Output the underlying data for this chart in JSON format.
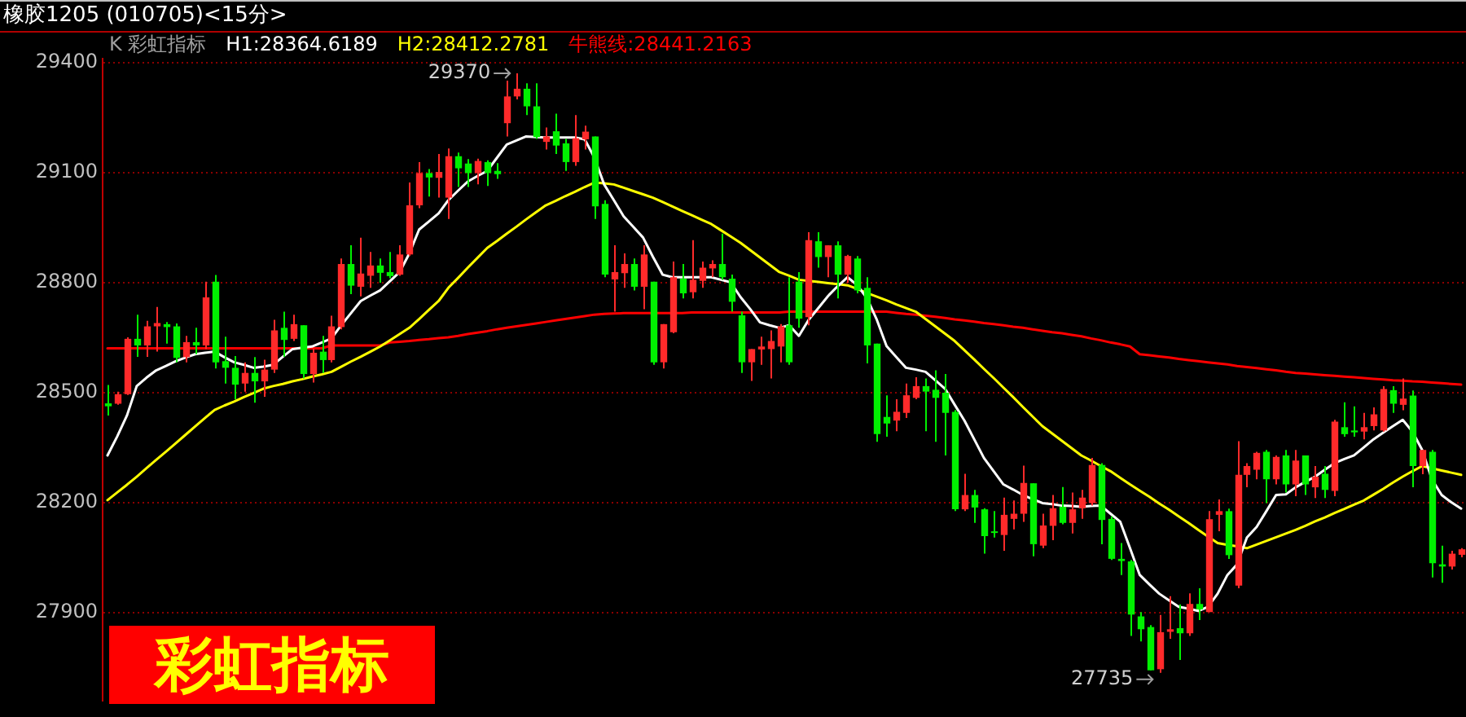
{
  "chart_data": {
    "type": "candlestick",
    "title": "橡胶1205 (010705)<15分>",
    "subtitle": "K 彩虹指标",
    "categories": [
      null,
      null,
      null,
      null,
      null,
      null,
      null,
      null,
      null,
      null,
      null,
      null,
      null,
      null,
      null,
      null,
      null,
      null,
      null,
      null,
      null,
      null,
      null,
      null,
      null,
      null,
      null,
      null,
      null,
      null,
      null,
      null,
      null,
      null,
      null,
      null,
      null,
      null,
      null,
      null,
      null,
      null,
      null,
      null,
      null,
      null,
      null,
      null,
      null,
      null,
      null,
      null,
      null,
      null,
      null,
      null,
      null,
      null,
      null,
      null,
      null,
      null,
      null,
      null,
      null,
      null,
      null,
      null,
      null,
      null,
      null,
      null,
      null,
      null,
      null,
      null,
      null,
      null,
      null,
      null,
      null,
      null,
      null,
      null,
      null,
      null,
      null,
      null,
      null,
      null,
      null,
      null,
      null,
      null,
      null,
      null,
      null,
      null,
      null,
      null,
      null,
      null,
      null,
      null,
      null,
      null,
      null,
      null,
      null,
      null,
      null,
      null,
      null,
      null,
      null,
      null,
      null,
      null,
      null,
      null,
      null,
      null,
      null,
      null,
      null,
      null,
      null,
      null,
      null,
      null,
      null,
      null,
      null,
      null,
      null,
      null,
      null,
      null,
      null,
      null
    ],
    "ohlc": [
      [
        28470,
        28520,
        28437,
        28462
      ],
      [
        28469,
        28502,
        28466,
        28495
      ],
      [
        28495,
        28650,
        28493,
        28646
      ],
      [
        28646,
        28712,
        28597,
        28628
      ],
      [
        28628,
        28695,
        28597,
        28680
      ],
      [
        28680,
        28733,
        28611,
        28689
      ],
      [
        28686,
        28692,
        28633,
        28678
      ],
      [
        28680,
        28688,
        28582,
        28594
      ],
      [
        28596,
        28654,
        28582,
        28637
      ],
      [
        28637,
        28676,
        28604,
        28628
      ],
      [
        28628,
        28802,
        28618,
        28759
      ],
      [
        28802,
        28820,
        28565,
        28582
      ],
      [
        28585,
        28652,
        28524,
        28567
      ],
      [
        28567,
        28599,
        28481,
        28521
      ],
      [
        28524,
        28582,
        28502,
        28553
      ],
      [
        28553,
        28596,
        28472,
        28530
      ],
      [
        28530,
        28589,
        28488,
        28562
      ],
      [
        28562,
        28698,
        28553,
        28669
      ],
      [
        28676,
        28720,
        28597,
        28643
      ],
      [
        28646,
        28712,
        28640,
        28686
      ],
      [
        28683,
        28683,
        28538,
        28550
      ],
      [
        28550,
        28618,
        28527,
        28608
      ],
      [
        28611,
        28654,
        28553,
        28588
      ],
      [
        28588,
        28709,
        28582,
        28680
      ],
      [
        28678,
        28865,
        28672,
        28850
      ],
      [
        28850,
        28901,
        28768,
        28791
      ],
      [
        28788,
        28922,
        28762,
        28824
      ],
      [
        28818,
        28883,
        28785,
        28846
      ],
      [
        28846,
        28865,
        28799,
        28826
      ],
      [
        28828,
        28883,
        28811,
        28817
      ],
      [
        28821,
        28901,
        28818,
        28876
      ],
      [
        28876,
        29072,
        28872,
        29010
      ],
      [
        29010,
        29128,
        29002,
        29098
      ],
      [
        29098,
        29109,
        29034,
        29086
      ],
      [
        29085,
        29150,
        29031,
        29101
      ],
      [
        29031,
        29165,
        28973,
        29144
      ],
      [
        29144,
        29154,
        29060,
        29111
      ],
      [
        29124,
        29136,
        29060,
        29098
      ],
      [
        29098,
        29137,
        29067,
        29131
      ],
      [
        29128,
        29133,
        29063,
        29098
      ],
      [
        29104,
        29125,
        29082,
        29095
      ],
      [
        29234,
        29350,
        29198,
        29307
      ],
      [
        29307,
        29370,
        29299,
        29328
      ],
      [
        29328,
        29343,
        29256,
        29280
      ],
      [
        29280,
        29343,
        29191,
        29196
      ],
      [
        29183,
        29222,
        29162,
        29198
      ],
      [
        29212,
        29260,
        29150,
        29173
      ],
      [
        29179,
        29191,
        29104,
        29128
      ],
      [
        29128,
        29256,
        29118,
        29193
      ],
      [
        29190,
        29227,
        29162,
        29211
      ],
      [
        29198,
        29198,
        28973,
        29007
      ],
      [
        29014,
        29024,
        28814,
        28821
      ],
      [
        28808,
        28901,
        28720,
        28828
      ],
      [
        28825,
        28879,
        28785,
        28850
      ],
      [
        28850,
        28865,
        28778,
        28788
      ],
      [
        28788,
        28901,
        28727,
        28876
      ],
      [
        28802,
        28802,
        28575,
        28582
      ],
      [
        28582,
        28686,
        28565,
        28686
      ],
      [
        28664,
        28857,
        28661,
        28814
      ],
      [
        28810,
        28850,
        28756,
        28770
      ],
      [
        28773,
        28915,
        28756,
        28807
      ],
      [
        28804,
        28857,
        28785,
        28840
      ],
      [
        28838,
        28860,
        28814,
        28850
      ],
      [
        28850,
        28933,
        28807,
        28814
      ],
      [
        28810,
        28821,
        28720,
        28747
      ],
      [
        28710,
        28720,
        28553,
        28582
      ],
      [
        28582,
        28618,
        28531,
        28618
      ],
      [
        28617,
        28652,
        28575,
        28625
      ],
      [
        28618,
        28669,
        28538,
        28640
      ],
      [
        28625,
        28686,
        28582,
        28680
      ],
      [
        28683,
        28814,
        28575,
        28582
      ],
      [
        28802,
        28828,
        28676,
        28701
      ],
      [
        28705,
        28937,
        28683,
        28915
      ],
      [
        28912,
        28937,
        28840,
        28869
      ],
      [
        28869,
        28901,
        28814,
        28901
      ],
      [
        28901,
        28912,
        28756,
        28821
      ],
      [
        28821,
        28875,
        28799,
        28872
      ],
      [
        28865,
        28872,
        28770,
        28778
      ],
      [
        28785,
        28814,
        28579,
        28628
      ],
      [
        28633,
        28633,
        28365,
        28386
      ],
      [
        28433,
        28492,
        28379,
        28415
      ],
      [
        28423,
        28481,
        28394,
        28447
      ],
      [
        28444,
        28524,
        28430,
        28492
      ],
      [
        28485,
        28541,
        28481,
        28517
      ],
      [
        28517,
        28538,
        28394,
        28502
      ],
      [
        28507,
        28560,
        28365,
        28485
      ],
      [
        28499,
        28550,
        28328,
        28444
      ],
      [
        28447,
        28452,
        28176,
        28181
      ],
      [
        28181,
        28278,
        28176,
        28220
      ],
      [
        28220,
        28234,
        28144,
        28186
      ],
      [
        28181,
        28184,
        28060,
        28108
      ],
      [
        28121,
        28176,
        28104,
        28117
      ],
      [
        28111,
        28213,
        28068,
        28166
      ],
      [
        28155,
        28205,
        28126,
        28169
      ],
      [
        28169,
        28300,
        28147,
        28253
      ],
      [
        28252,
        28252,
        28053,
        28086
      ],
      [
        28082,
        28169,
        28075,
        28137
      ],
      [
        28136,
        28220,
        28097,
        28184
      ],
      [
        28188,
        28242,
        28140,
        28144
      ],
      [
        28144,
        28227,
        28115,
        28181
      ],
      [
        28184,
        28234,
        28155,
        28213
      ],
      [
        28198,
        28321,
        28191,
        28302
      ],
      [
        28302,
        28307,
        28086,
        28152
      ],
      [
        28155,
        28162,
        28043,
        28046
      ],
      [
        28046,
        28089,
        28002,
        28040
      ],
      [
        28039,
        28043,
        27836,
        27894
      ],
      [
        27889,
        27901,
        27821,
        27854
      ],
      [
        27860,
        27865,
        27742,
        27742
      ],
      [
        27745,
        27893,
        27735,
        27846
      ],
      [
        27847,
        27944,
        27828,
        27854
      ],
      [
        27857,
        27922,
        27770,
        27843
      ],
      [
        27843,
        27952,
        27836,
        27923
      ],
      [
        27923,
        27966,
        27879,
        27908
      ],
      [
        27901,
        28176,
        27901,
        28154
      ],
      [
        28166,
        28208,
        28121,
        28176
      ],
      [
        28176,
        28183,
        28046,
        28056
      ],
      [
        27973,
        28367,
        27966,
        28275
      ],
      [
        28275,
        28307,
        28241,
        28299
      ],
      [
        28289,
        28338,
        28263,
        28335
      ],
      [
        28338,
        28343,
        28198,
        28263
      ],
      [
        28263,
        28328,
        28249,
        28324
      ],
      [
        28328,
        28343,
        28227,
        28249
      ],
      [
        28249,
        28343,
        28217,
        28314
      ],
      [
        28328,
        28328,
        28220,
        28249
      ],
      [
        28241,
        28299,
        28212,
        28270
      ],
      [
        28278,
        28299,
        28212,
        28234
      ],
      [
        28231,
        28425,
        28217,
        28420
      ],
      [
        28405,
        28473,
        28379,
        28386
      ],
      [
        28396,
        28462,
        28379,
        28391
      ],
      [
        28393,
        28444,
        28372,
        28405
      ],
      [
        28408,
        28459,
        28396,
        28440
      ],
      [
        28396,
        28517,
        28393,
        28509
      ],
      [
        28506,
        28517,
        28444,
        28469
      ],
      [
        28466,
        28538,
        28451,
        28483
      ],
      [
        28491,
        28505,
        28241,
        28299
      ],
      [
        28299,
        28343,
        28277,
        28343
      ],
      [
        28338,
        28343,
        27995,
        28034
      ],
      [
        28031,
        28082,
        27981,
        28025
      ],
      [
        28025,
        28068,
        28017,
        28060
      ],
      [
        28057,
        28075,
        28050,
        28072
      ]
    ],
    "series": [
      {
        "name": "H1:28364.6189",
        "type": "line",
        "color": "#ffffff",
        "values": [
          28328,
          28380,
          28437,
          28517,
          28540,
          28560,
          28572,
          28585,
          28595,
          28604,
          28608,
          28611,
          28596,
          28582,
          28575,
          28567,
          28570,
          28575,
          28597,
          28618,
          28622,
          28625,
          28636,
          28647,
          28683,
          28716,
          28749,
          28764,
          28778,
          28803,
          28828,
          28879,
          28944,
          28966,
          28988,
          29024,
          29050,
          29075,
          29090,
          29104,
          29140,
          29176,
          29187,
          29198,
          29196,
          29195,
          29195,
          29195,
          29195,
          29190,
          29140,
          29067,
          29024,
          28980,
          28951,
          28922,
          28870,
          28821,
          28814,
          28814,
          28814,
          28814,
          28814,
          28807,
          28800,
          28760,
          28727,
          28691,
          28683,
          28676,
          28683,
          28654,
          28698,
          28730,
          28763,
          28790,
          28814,
          28792,
          28756,
          28698,
          28626,
          28596,
          28567,
          28562,
          28556,
          28533,
          28510,
          28466,
          28423,
          28372,
          28321,
          28285,
          28249,
          28235,
          28220,
          28209,
          28198,
          28195,
          28191,
          28190,
          28188,
          28190,
          28191,
          28169,
          28147,
          28075,
          28002,
          27976,
          27951,
          27933,
          27915,
          27910,
          27904,
          27915,
          27951,
          28002,
          28031,
          28104,
          28133,
          28176,
          28220,
          28222,
          28241,
          28256,
          28270,
          28289,
          28307,
          28318,
          28328,
          28350,
          28372,
          28390,
          28408,
          28425,
          28393,
          28343,
          28263,
          28220,
          28200,
          28183
        ]
      },
      {
        "name": "H2:28412.2781",
        "type": "line",
        "color": "#ffff00",
        "values": [
          28206,
          28227,
          28248,
          28270,
          28293,
          28316,
          28338,
          28361,
          28384,
          28407,
          28430,
          28452,
          28464,
          28475,
          28487,
          28498,
          28510,
          28517,
          28523,
          28530,
          28536,
          28543,
          28549,
          28556,
          28570,
          28584,
          28597,
          28611,
          28625,
          28642,
          28659,
          28676,
          28700,
          28725,
          28749,
          28785,
          28812,
          28840,
          28867,
          28894,
          28913,
          28933,
          28952,
          28972,
          28991,
          29010,
          29022,
          29035,
          29047,
          29060,
          29072,
          29070,
          29067,
          29058,
          29049,
          29040,
          29031,
          29019,
          29007,
          28995,
          28983,
          28971,
          28959,
          28942,
          28925,
          28908,
          28888,
          28868,
          28848,
          28828,
          28818,
          28807,
          28804,
          28801,
          28798,
          28795,
          28792,
          28782,
          28771,
          28761,
          28751,
          28740,
          28730,
          28720,
          28700,
          28680,
          28660,
          28640,
          28615,
          28590,
          28564,
          28539,
          28513,
          28487,
          28460,
          28434,
          28408,
          28388,
          28368,
          28348,
          28328,
          28314,
          28299,
          28285,
          28267,
          28249,
          28232,
          28215,
          28197,
          28180,
          28162,
          28144,
          28125,
          28107,
          28089,
          28084,
          28080,
          28075,
          28085,
          28095,
          28105,
          28115,
          28125,
          28136,
          28148,
          28159,
          28171,
          28182,
          28194,
          28205,
          28221,
          28237,
          28254,
          28270,
          28285,
          28299,
          28293,
          28287,
          28281,
          28275
        ]
      },
      {
        "name": "牛熊线:28441.2163",
        "type": "line",
        "color": "#ff0000",
        "values": [
          28620,
          28620,
          28620,
          28620,
          28620,
          28620,
          28620,
          28620,
          28620,
          28620,
          28620,
          28620,
          28620,
          28620,
          28620,
          28620,
          28620,
          28620,
          28620,
          28620,
          28620,
          28620,
          28620,
          28628,
          28628,
          28628,
          28628,
          28628,
          28628,
          28636,
          28638,
          28640,
          28643,
          28645,
          28648,
          28650,
          28654,
          28659,
          28663,
          28667,
          28672,
          28676,
          28680,
          28684,
          28688,
          28692,
          28696,
          28700,
          28704,
          28708,
          28712,
          28714,
          28715,
          28716,
          28716,
          28716,
          28716,
          28716,
          28716,
          28716,
          28718,
          28718,
          28718,
          28718,
          28718,
          28718,
          28718,
          28718,
          28718,
          28718,
          28720,
          28720,
          28720,
          28720,
          28720,
          28720,
          28720,
          28720,
          28720,
          28720,
          28720,
          28717,
          28714,
          28712,
          28709,
          28706,
          28703,
          28699,
          28696,
          28693,
          28689,
          28686,
          28683,
          28679,
          28676,
          28672,
          28668,
          28664,
          28661,
          28657,
          28653,
          28647,
          28642,
          28636,
          28631,
          28625,
          28604,
          28601,
          28598,
          28595,
          28591,
          28588,
          28585,
          28582,
          28579,
          28576,
          28572,
          28569,
          28566,
          28563,
          28560,
          28556,
          28553,
          28551,
          28549,
          28547,
          28545,
          28543,
          28541,
          28539,
          28537,
          28535,
          28533,
          28532,
          28530,
          28529,
          28527,
          28525,
          28523,
          28521
        ]
      }
    ],
    "ylim": [
      27660,
      29410
    ],
    "yticks": [
      27900,
      28200,
      28500,
      28800,
      29100,
      29400
    ],
    "grid": "y",
    "legend": "top left",
    "tick_labels": "y",
    "marker": "none",
    "line_style": "solid",
    "annotations": [
      "29370",
      "27735",
      "彩虹指标"
    ]
  }
}
